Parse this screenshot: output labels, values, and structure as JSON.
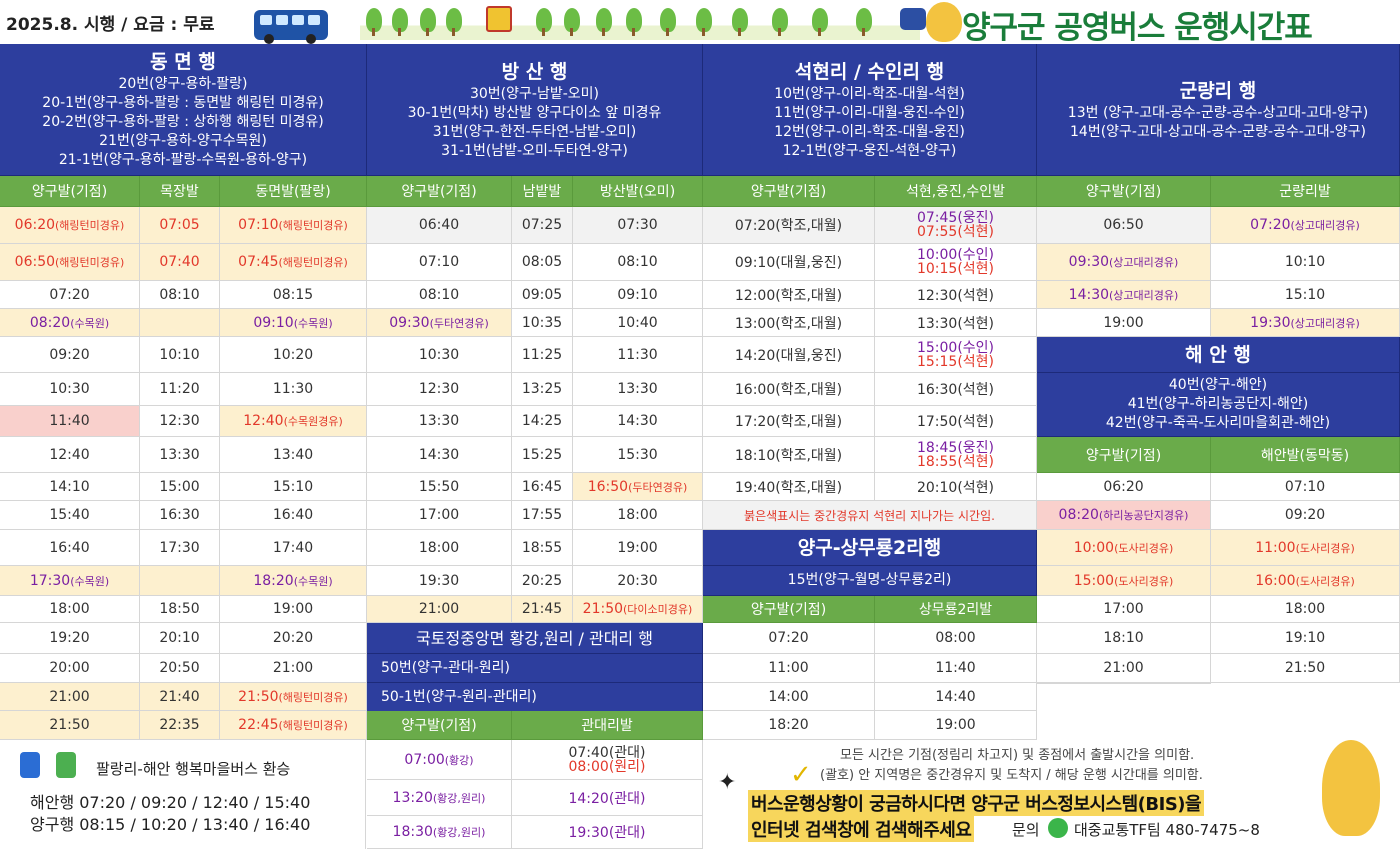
{
  "header": {
    "info": "2025.8. 시행 / 요금 : 무료",
    "title": "양구군 공영버스 운행시간표"
  },
  "groups": {
    "dongmyeon": {
      "title": "동 면 행",
      "routes": [
        "20번(양구-용하-팔랑)",
        "20-1번(양구-용하-팔랑 : 동면발 해링턴 미경유)",
        "20-2번(양구-용하-팔랑 : 상하행 해링턴 미경유)",
        "21번(양구-용하-양구수목원)",
        "21-1번(양구-용하-팔랑-수목원-용하-양구)"
      ],
      "cols": [
        "양구발(기점)",
        "목장발",
        "동면발(팔랑)"
      ],
      "rows": [
        [
          "06:20",
          "(해링턴미경유)",
          "07:05",
          "",
          "07:10",
          "(해링턴미경유)"
        ],
        [
          "06:50",
          "(해링턴미경유)",
          "07:40",
          "",
          "07:45",
          "(해링턴미경유)"
        ],
        [
          "07:20",
          "",
          "08:10",
          "",
          "08:15",
          ""
        ],
        [
          "08:20",
          "(수목원)",
          "",
          "",
          "09:10",
          "(수목원)"
        ],
        [
          "09:20",
          "",
          "10:10",
          "",
          "10:20",
          ""
        ],
        [
          "10:30",
          "",
          "11:20",
          "",
          "11:30",
          ""
        ],
        [
          "11:40",
          "",
          "12:30",
          "",
          "12:40",
          "(수목원경유)"
        ],
        [
          "12:40",
          "",
          "13:30",
          "",
          "13:40",
          ""
        ],
        [
          "14:10",
          "",
          "15:00",
          "",
          "15:10",
          ""
        ],
        [
          "15:40",
          "",
          "16:30",
          "",
          "16:40",
          ""
        ],
        [
          "16:40",
          "",
          "17:30",
          "",
          "17:40",
          ""
        ],
        [
          "17:30",
          "(수목원)",
          "",
          "",
          "18:20",
          "(수목원)"
        ],
        [
          "18:00",
          "",
          "18:50",
          "",
          "19:00",
          ""
        ],
        [
          "19:20",
          "",
          "20:10",
          "",
          "20:20",
          ""
        ],
        [
          "20:00",
          "",
          "20:50",
          "",
          "21:00",
          ""
        ],
        [
          "21:00",
          "",
          "21:40",
          "",
          "21:50",
          "(해링턴미경유)"
        ],
        [
          "21:50",
          "",
          "22:35",
          "",
          "22:45",
          "(해링턴미경유)"
        ]
      ]
    },
    "bangsan": {
      "title": "방 산 행",
      "routes": [
        "30번(양구-남밭-오미)",
        "30-1번(막차) 방산발 양구다이소 앞 미경유",
        "31번(양구-한전-두타연-남밭-오미)",
        "31-1번(남밭-오미-두타연-양구)"
      ],
      "cols": [
        "양구발(기점)",
        "남밭발",
        "방산발(오미)"
      ],
      "rows": [
        [
          "06:40",
          "",
          "07:25",
          "",
          "07:30",
          ""
        ],
        [
          "07:10",
          "",
          "08:05",
          "",
          "08:10",
          ""
        ],
        [
          "08:10",
          "",
          "09:05",
          "",
          "09:10",
          ""
        ],
        [
          "09:30",
          "(두타연경유)",
          "10:35",
          "",
          "10:40",
          ""
        ],
        [
          "10:30",
          "",
          "11:25",
          "",
          "11:30",
          ""
        ],
        [
          "12:30",
          "",
          "13:25",
          "",
          "13:30",
          ""
        ],
        [
          "13:30",
          "",
          "14:25",
          "",
          "14:30",
          ""
        ],
        [
          "14:30",
          "",
          "15:25",
          "",
          "15:30",
          ""
        ],
        [
          "15:50",
          "",
          "16:45",
          "",
          "16:50",
          "(두타연경유)"
        ],
        [
          "17:00",
          "",
          "17:55",
          "",
          "18:00",
          ""
        ],
        [
          "18:00",
          "",
          "18:55",
          "",
          "19:00",
          ""
        ],
        [
          "19:30",
          "",
          "20:25",
          "",
          "20:30",
          ""
        ],
        [
          "21:00",
          "",
          "21:45",
          "",
          "21:50",
          "(다이소미경유)"
        ]
      ]
    },
    "gukto": {
      "title": "국토정중앙면 황강,원리 / 관대리 행",
      "routes": [
        "50번(양구-관대-원리)",
        "50-1번(양구-원리-관대리)"
      ],
      "cols": [
        "양구발(기점)",
        "관대리발"
      ],
      "rows": [
        [
          "07:00",
          "(황강)",
          "07:40(관대)",
          "08:00(원리)"
        ],
        [
          "13:20",
          "(황강,원리)",
          "14:20(관대)",
          ""
        ],
        [
          "18:30",
          "(황강,원리)",
          "19:30(관대)",
          ""
        ]
      ]
    },
    "seokhyeon": {
      "title": "석현리 / 수인리 행",
      "routes": [
        "10번(양구-이리-학조-대월-석현)",
        "11번(양구-이리-대월-웅진-수인)",
        "12번(양구-이리-학조-대월-웅진)",
        "12-1번(양구-웅진-석현-양구)"
      ],
      "cols": [
        "양구발(기점)",
        "석현,웅진,수인발"
      ],
      "rows": [
        [
          "07:20(학조,대월)",
          "07:45(웅진)",
          "07:55(석현)"
        ],
        [
          "09:10(대월,웅진)",
          "10:00(수인)",
          "10:15(석현)"
        ],
        [
          "12:00(학조,대월)",
          "12:30(석현)",
          ""
        ],
        [
          "13:00(학조,대월)",
          "13:30(석현)",
          ""
        ],
        [
          "14:20(대월,웅진)",
          "15:00(수인)",
          "15:15(석현)"
        ],
        [
          "16:00(학조,대월)",
          "16:30(석현)",
          ""
        ],
        [
          "17:20(학조,대월)",
          "17:50(석현)",
          ""
        ],
        [
          "18:10(학조,대월)",
          "18:45(웅진)",
          "18:55(석현)"
        ],
        [
          "19:40(학조,대월)",
          "20:10(석현)",
          ""
        ]
      ],
      "note": "붉은색표시는 중간경유지 석현리 지나가는 시간임."
    },
    "sangmuryong": {
      "title": "양구-상무룡2리행",
      "route": "15번(양구-월명-상무룡2리)",
      "cols": [
        "양구발(기점)",
        "상무룡2리발"
      ],
      "rows": [
        [
          "07:20",
          "08:00"
        ],
        [
          "11:00",
          "11:40"
        ],
        [
          "14:00",
          "14:40"
        ],
        [
          "18:20",
          "19:00"
        ]
      ]
    },
    "gunryang": {
      "title": "군량리 행",
      "routes": [
        "13번 (양구-고대-공수-군량-공수-상고대-고대-양구)",
        "14번(양구-고대-상고대-공수-군량-공수-고대-양구)"
      ],
      "cols": [
        "양구발(기점)",
        "군량리발"
      ],
      "rows": [
        [
          "06:50",
          "",
          "07:20",
          "(상고대리경유)"
        ],
        [
          "09:30",
          "(상고대리경유)",
          "10:10",
          ""
        ],
        [
          "14:30",
          "(상고대리경유)",
          "15:10",
          ""
        ],
        [
          "19:00",
          "",
          "19:30",
          "(상고대리경유)"
        ]
      ]
    },
    "haean": {
      "title": "해 안 행",
      "routes": [
        "40번(양구-해안)",
        "41번(양구-하리농공단지-해안)",
        "42번(양구-죽곡-도사리마을회관-해안)"
      ],
      "cols": [
        "양구발(기점)",
        "해안발(동막동)"
      ],
      "rows": [
        [
          "06:20",
          "",
          "07:10",
          ""
        ],
        [
          "08:20",
          "(하리농공단지경유)",
          "09:20",
          ""
        ],
        [
          "10:00",
          "(도사리경유)",
          "11:00",
          "(도사리경유)"
        ],
        [
          "15:00",
          "(도사리경유)",
          "16:00",
          "(도사리경유)"
        ],
        [
          "17:00",
          "",
          "18:00",
          ""
        ],
        [
          "18:10",
          "",
          "19:10",
          ""
        ],
        [
          "21:00",
          "",
          "21:50",
          ""
        ]
      ]
    }
  },
  "transfer": {
    "title": "팔랑리-해안 행복마을버스 환승",
    "line1": "해안행 07:20 / 09:20 / 12:40 / 15:40",
    "line2": "양구행 08:15 / 10:20 / 13:40 / 16:40"
  },
  "footer": {
    "note1": "모든 시간은 기점(정림리 차고지) 및 종점에서 출발시간을 의미함.",
    "note2": "(괄호) 안 지역명은 중간경유지 및 도착지 / 해당 운행 시간대를 의미함.",
    "banner1": "버스운행상황이 궁금하시다면 양구군 버스정보시스템(BIS)을",
    "banner2": "인터넷 검색창에 검색해주세요",
    "contact_label": "문의",
    "contact": "대중교통TF팀 480-7475~8"
  }
}
